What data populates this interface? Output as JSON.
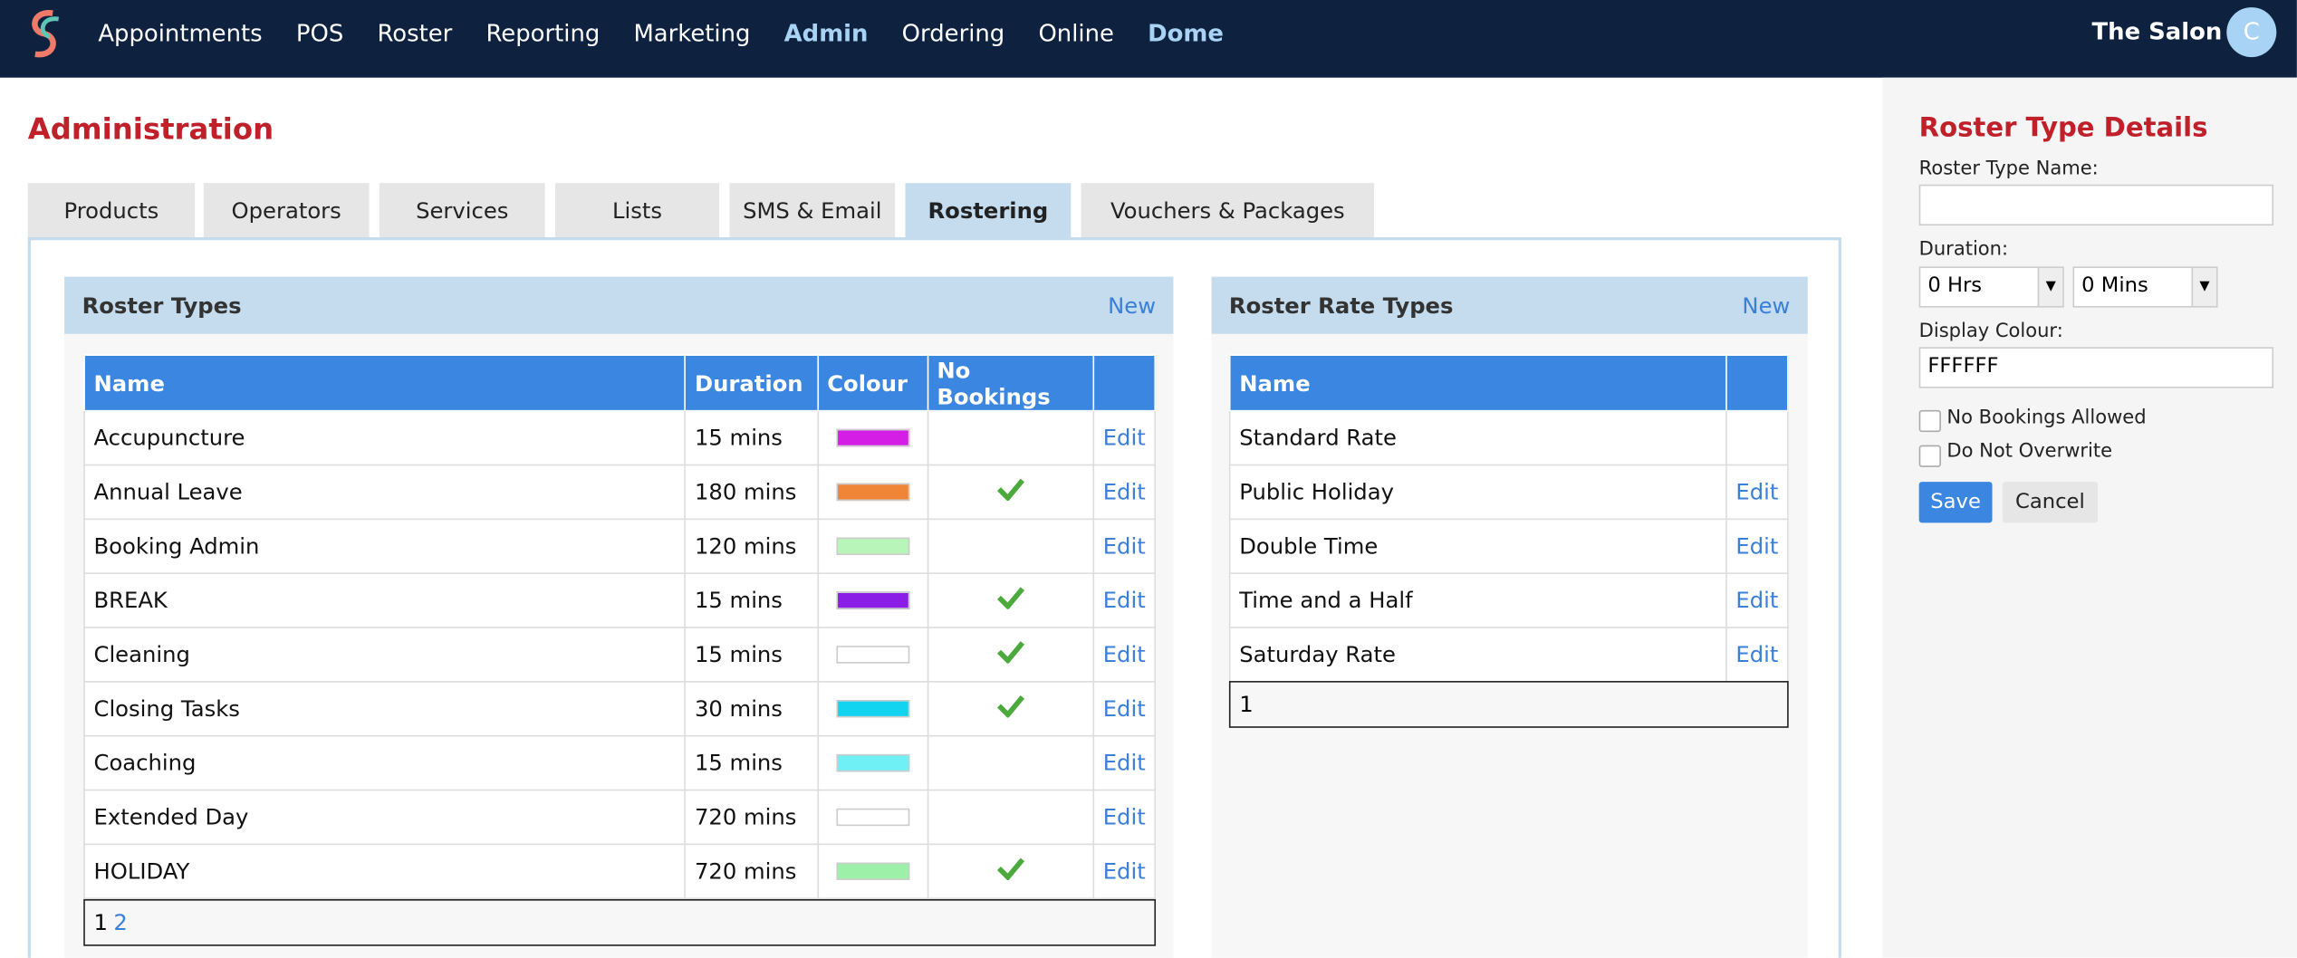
{
  "nav": {
    "items": [
      {
        "label": "Appointments",
        "highlighted": false
      },
      {
        "label": "POS",
        "highlighted": false
      },
      {
        "label": "Roster",
        "highlighted": false
      },
      {
        "label": "Reporting",
        "highlighted": false
      },
      {
        "label": "Marketing",
        "highlighted": false
      },
      {
        "label": "Admin",
        "highlighted": true
      },
      {
        "label": "Ordering",
        "highlighted": false
      },
      {
        "label": "Online",
        "highlighted": false
      },
      {
        "label": "Dome",
        "highlighted": true
      }
    ],
    "salon": "The Salon",
    "avatar": "C"
  },
  "page": {
    "title": "Administration",
    "tabs": [
      "Products",
      "Operators",
      "Services",
      "Lists",
      "SMS & Email",
      "Rostering",
      "Vouchers & Packages"
    ],
    "active_tab": 5
  },
  "roster_types": {
    "title": "Roster Types",
    "new": "New",
    "columns": [
      "Name",
      "Duration",
      "Colour",
      "No Bookings"
    ],
    "rows": [
      {
        "name": "Accupuncture",
        "duration": "15 mins",
        "colour": "#d41ee6",
        "no_bookings": false,
        "edit": "Edit"
      },
      {
        "name": "Annual Leave",
        "duration": "180 mins",
        "colour": "#f08437",
        "no_bookings": true,
        "edit": "Edit"
      },
      {
        "name": "Booking Admin",
        "duration": "120 mins",
        "colour": "#b8f5b8",
        "no_bookings": false,
        "edit": "Edit"
      },
      {
        "name": "BREAK",
        "duration": "15 mins",
        "colour": "#8a1ee6",
        "no_bookings": true,
        "edit": "Edit"
      },
      {
        "name": "Cleaning",
        "duration": "15 mins",
        "colour": "#ffffff",
        "no_bookings": true,
        "edit": "Edit"
      },
      {
        "name": "Closing Tasks",
        "duration": "30 mins",
        "colour": "#13d4f0",
        "no_bookings": true,
        "edit": "Edit"
      },
      {
        "name": "Coaching",
        "duration": "15 mins",
        "colour": "#6ff0f5",
        "no_bookings": false,
        "edit": "Edit"
      },
      {
        "name": "Extended Day",
        "duration": "720 mins",
        "colour": "#ffffff",
        "no_bookings": false,
        "edit": "Edit"
      },
      {
        "name": "HOLIDAY",
        "duration": "720 mins",
        "colour": "#9cf0a8",
        "no_bookings": true,
        "edit": "Edit"
      }
    ],
    "pages": [
      "1",
      "2"
    ]
  },
  "rate_types": {
    "title": "Roster Rate Types",
    "new": "New",
    "columns": [
      "Name"
    ],
    "rows": [
      {
        "name": "Standard Rate"
      },
      {
        "name": "Public Holiday",
        "edit": "Edit"
      },
      {
        "name": "Double Time",
        "edit": "Edit"
      },
      {
        "name": "Time and a Half",
        "edit": "Edit"
      },
      {
        "name": "Saturday Rate",
        "edit": "Edit"
      }
    ],
    "pages": [
      "1"
    ]
  },
  "details": {
    "title": "Roster Type Details",
    "name_label": "Roster Type Name:",
    "duration_label": "Duration:",
    "hours": "0 Hrs",
    "minutes": "0 Mins",
    "colour_label": "Display Colour:",
    "colour_value": "FFFFFF",
    "no_bookings": "No Bookings Allowed",
    "no_overwrite": "Do Not Overwrite",
    "save": "Save",
    "cancel": "Cancel"
  }
}
